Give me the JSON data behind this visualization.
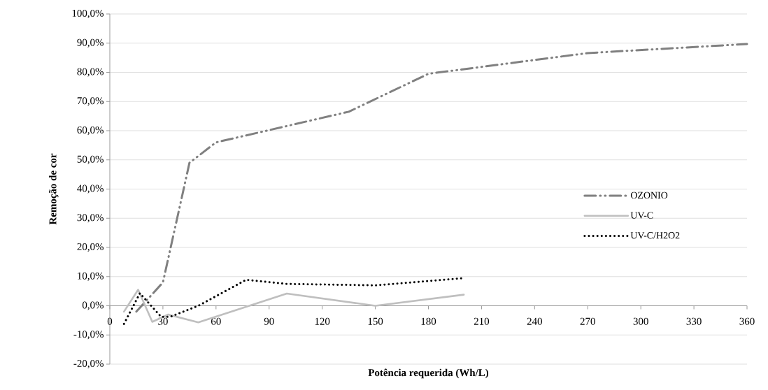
{
  "chart_data": {
    "type": "line",
    "xlabel": "Potência requerida (Wh/L)",
    "ylabel": "Remoção de cor",
    "series": [
      {
        "name": "OZONIO",
        "color": "#808080",
        "line_style": "dashed",
        "x": [
          15,
          30,
          45,
          60,
          135,
          180,
          270,
          360
        ],
        "values": [
          -2,
          8,
          49,
          56,
          66.5,
          79.5,
          86.6,
          89.7
        ]
      },
      {
        "name": "UV-C",
        "color": "#bfbfbf",
        "line_style": "solid",
        "x": [
          8,
          16,
          24,
          33,
          50,
          100,
          150,
          200
        ],
        "values": [
          -2,
          5.5,
          -5.5,
          -3,
          -5.7,
          4.2,
          0,
          3.8
        ]
      },
      {
        "name": "UV-C/H2O2",
        "color": "#000000",
        "line_style": "dotted",
        "x": [
          8,
          17,
          29,
          34,
          50,
          77,
          100,
          150,
          200
        ],
        "values": [
          -6.2,
          4.3,
          -3.8,
          -3.8,
          0,
          8.9,
          7.5,
          7,
          9.5
        ]
      }
    ],
    "xlim": [
      0,
      360
    ],
    "xticks": [
      0,
      30,
      60,
      90,
      120,
      150,
      180,
      210,
      240,
      270,
      300,
      330,
      360
    ],
    "ylim": [
      -20,
      100
    ],
    "yticks": [
      {
        "value": -20,
        "label": "-20,0%"
      },
      {
        "value": -10,
        "label": "-10,0%"
      },
      {
        "value": 0,
        "label": "0,0%"
      },
      {
        "value": 10,
        "label": "10,0%"
      },
      {
        "value": 20,
        "label": "20,0%"
      },
      {
        "value": 30,
        "label": "30,0%"
      },
      {
        "value": 40,
        "label": "40,0%"
      },
      {
        "value": 50,
        "label": "50,0%"
      },
      {
        "value": 60,
        "label": "60,0%"
      },
      {
        "value": 70,
        "label": "70,0%"
      },
      {
        "value": 80,
        "label": "80,0%"
      },
      {
        "value": 90,
        "label": "90,0%"
      },
      {
        "value": 100,
        "label": "100,0%"
      }
    ],
    "grid": "y",
    "legend": "right",
    "marker": "none"
  }
}
